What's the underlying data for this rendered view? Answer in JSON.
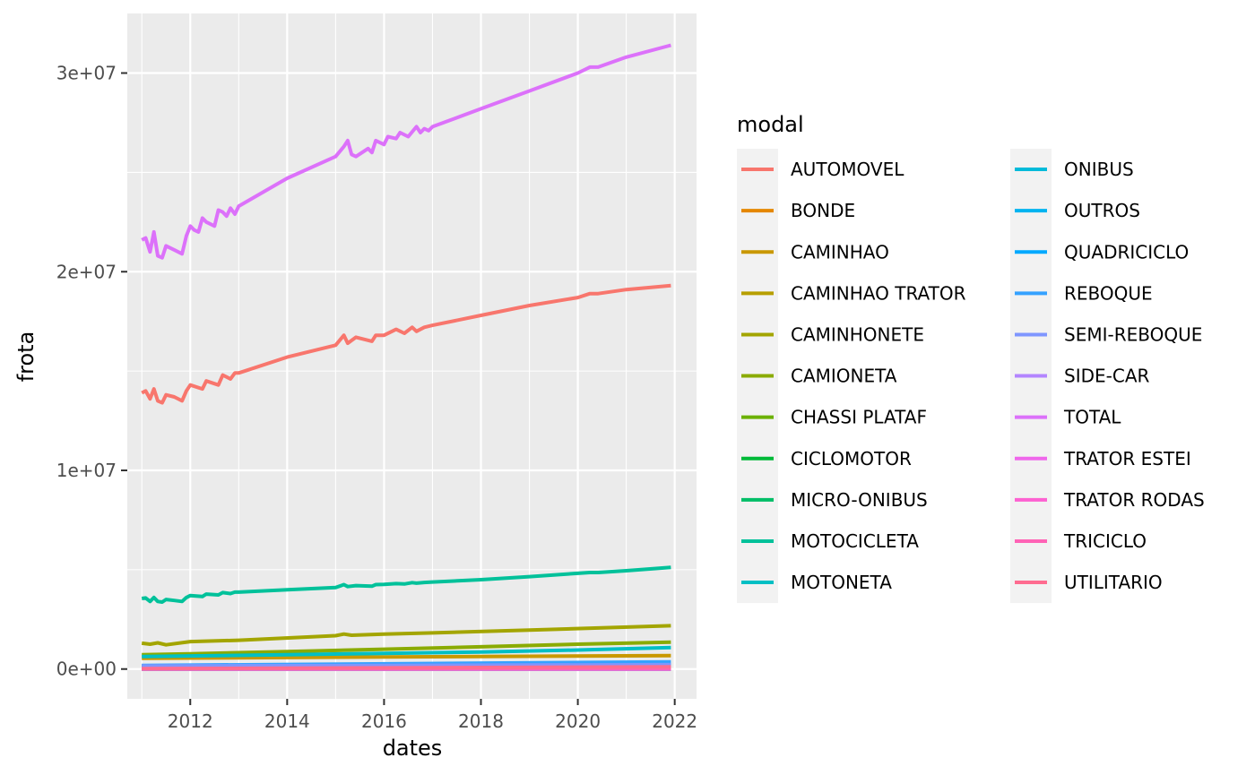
{
  "chart_data": {
    "type": "line",
    "xlabel": "dates",
    "ylabel": "frota",
    "xlim": [
      2010.7,
      2022.45
    ],
    "ylim": [
      -1500000,
      33000000
    ],
    "x_ticks": [
      2012,
      2014,
      2016,
      2018,
      2020,
      2022
    ],
    "x_tick_labels": [
      "2012",
      "2014",
      "2016",
      "2018",
      "2020",
      "2022"
    ],
    "y_ticks": [
      0,
      10000000,
      20000000,
      30000000
    ],
    "y_tick_labels": [
      "0e+00",
      "1e+07",
      "2e+07",
      "3e+07"
    ],
    "grid": true,
    "legend": {
      "title": "modal",
      "placement": "right",
      "columns": 2
    },
    "series": [
      {
        "name": "AUTOMOVEL",
        "color": "#F8766D",
        "x": [
          2011.0,
          2011.08,
          2011.17,
          2011.25,
          2011.33,
          2011.42,
          2011.5,
          2011.67,
          2011.83,
          2011.92,
          2012.0,
          2012.25,
          2012.33,
          2012.58,
          2012.67,
          2012.83,
          2012.92,
          2013.0,
          2014.0,
          2015.0,
          2015.17,
          2015.25,
          2015.42,
          2015.75,
          2015.83,
          2016.0,
          2016.25,
          2016.42,
          2016.58,
          2016.67,
          2016.83,
          2017.0,
          2018.0,
          2019.0,
          2020.0,
          2020.25,
          2020.42,
          2021.0,
          2021.92
        ],
        "y": [
          13900000,
          14000000,
          13600000,
          14100000,
          13500000,
          13400000,
          13800000,
          13700000,
          13500000,
          14000000,
          14300000,
          14100000,
          14500000,
          14300000,
          14800000,
          14600000,
          14900000,
          14900000,
          15700000,
          16300000,
          16800000,
          16400000,
          16700000,
          16500000,
          16800000,
          16800000,
          17100000,
          16900000,
          17200000,
          17000000,
          17200000,
          17300000,
          17800000,
          18300000,
          18700000,
          18900000,
          18900000,
          19100000,
          19300000
        ]
      },
      {
        "name": "BONDE",
        "color": "#E58700",
        "x": [
          2011.0,
          2021.92
        ],
        "y": [
          300,
          300
        ]
      },
      {
        "name": "CAMINHAO",
        "color": "#C99800",
        "x": [
          2011.0,
          2016.0,
          2021.92
        ],
        "y": [
          540000,
          610000,
          680000
        ]
      },
      {
        "name": "CAMINHAO TRATOR",
        "color": "#B79F00",
        "x": [
          2011.0,
          2016.0,
          2021.92
        ],
        "y": [
          160000,
          190000,
          220000
        ]
      },
      {
        "name": "CAMINHONETE",
        "color": "#A3A500",
        "x": [
          2011.0,
          2011.17,
          2011.33,
          2011.5,
          2012.0,
          2013.0,
          2015.0,
          2015.17,
          2015.33,
          2016.0,
          2017.0,
          2019.0,
          2021.92
        ],
        "y": [
          1300000,
          1250000,
          1320000,
          1220000,
          1380000,
          1450000,
          1680000,
          1760000,
          1700000,
          1760000,
          1820000,
          1960000,
          2180000
        ]
      },
      {
        "name": "CAMIONETA",
        "color": "#8AAB00",
        "x": [
          2011.0,
          2012.0,
          2014.0,
          2016.0,
          2018.0,
          2020.0,
          2021.92
        ],
        "y": [
          720000,
          770000,
          880000,
          1000000,
          1120000,
          1250000,
          1350000
        ]
      },
      {
        "name": "CHASSI PLATAF",
        "color": "#6BB100",
        "x": [
          2011.0,
          2021.92
        ],
        "y": [
          3000,
          3000
        ]
      },
      {
        "name": "CICLOMOTOR",
        "color": "#00BA38",
        "x": [
          2011.0,
          2021.92
        ],
        "y": [
          30000,
          50000
        ]
      },
      {
        "name": "MICRO-ONIBUS",
        "color": "#00BE67",
        "x": [
          2011.0,
          2021.92
        ],
        "y": [
          90000,
          120000
        ]
      },
      {
        "name": "MOTOCICLETA",
        "color": "#00C19A",
        "x": [
          2011.0,
          2011.08,
          2011.17,
          2011.25,
          2011.33,
          2011.42,
          2011.5,
          2011.67,
          2011.83,
          2011.92,
          2012.0,
          2012.25,
          2012.33,
          2012.58,
          2012.67,
          2012.83,
          2012.92,
          2013.0,
          2014.0,
          2015.0,
          2015.17,
          2015.25,
          2015.42,
          2015.75,
          2015.83,
          2016.0,
          2016.25,
          2016.42,
          2016.58,
          2016.67,
          2016.83,
          2017.0,
          2018.0,
          2019.0,
          2020.0,
          2020.25,
          2020.42,
          2021.0,
          2021.92
        ],
        "y": [
          3550000,
          3580000,
          3400000,
          3600000,
          3400000,
          3370000,
          3500000,
          3450000,
          3400000,
          3600000,
          3700000,
          3650000,
          3770000,
          3730000,
          3850000,
          3800000,
          3870000,
          3870000,
          3990000,
          4100000,
          4250000,
          4150000,
          4200000,
          4170000,
          4250000,
          4260000,
          4300000,
          4280000,
          4350000,
          4320000,
          4360000,
          4380000,
          4500000,
          4650000,
          4820000,
          4860000,
          4860000,
          4950000,
          5120000
        ]
      },
      {
        "name": "MOTONETA",
        "color": "#00BFC4",
        "x": [
          2011.0,
          2012.0,
          2014.0,
          2016.0,
          2018.0,
          2020.0,
          2021.92
        ],
        "y": [
          630000,
          660000,
          720000,
          790000,
          860000,
          960000,
          1080000
        ]
      },
      {
        "name": "ONIBUS",
        "color": "#00BBDA",
        "x": [
          2011.0,
          2021.92
        ],
        "y": [
          160000,
          200000
        ]
      },
      {
        "name": "OUTROS",
        "color": "#00B4F0",
        "x": [
          2011.0,
          2021.92
        ],
        "y": [
          10000,
          10000
        ]
      },
      {
        "name": "QUADRICICLO",
        "color": "#00A9FF",
        "x": [
          2011.0,
          2021.92
        ],
        "y": [
          200,
          500
        ]
      },
      {
        "name": "REBOQUE",
        "color": "#35A2FF",
        "x": [
          2011.0,
          2021.92
        ],
        "y": [
          180000,
          360000
        ]
      },
      {
        "name": "SEMI-REBOQUE",
        "color": "#7F96FF",
        "x": [
          2011.0,
          2021.92
        ],
        "y": [
          150000,
          220000
        ]
      },
      {
        "name": "SIDE-CAR",
        "color": "#B385FF",
        "x": [
          2011.0,
          2021.92
        ],
        "y": [
          2000,
          3000
        ]
      },
      {
        "name": "TOTAL",
        "color": "#DC71FA",
        "x": [
          2011.0,
          2011.08,
          2011.17,
          2011.25,
          2011.33,
          2011.42,
          2011.5,
          2011.67,
          2011.83,
          2011.92,
          2012.0,
          2012.08,
          2012.17,
          2012.25,
          2012.33,
          2012.5,
          2012.58,
          2012.67,
          2012.75,
          2012.83,
          2012.92,
          2013.0,
          2014.0,
          2015.0,
          2015.17,
          2015.25,
          2015.33,
          2015.42,
          2015.67,
          2015.75,
          2015.83,
          2016.0,
          2016.08,
          2016.25,
          2016.33,
          2016.5,
          2016.67,
          2016.75,
          2016.83,
          2016.92,
          2017.0,
          2018.0,
          2019.0,
          2020.0,
          2020.25,
          2020.42,
          2021.0,
          2021.92
        ],
        "y": [
          21600000,
          21700000,
          21000000,
          22000000,
          20800000,
          20700000,
          21300000,
          21100000,
          20900000,
          21800000,
          22300000,
          22100000,
          22000000,
          22700000,
          22500000,
          22300000,
          23100000,
          23000000,
          22800000,
          23200000,
          22900000,
          23300000,
          24700000,
          25800000,
          26300000,
          26600000,
          25900000,
          25800000,
          26200000,
          26000000,
          26600000,
          26400000,
          26800000,
          26700000,
          27000000,
          26800000,
          27300000,
          27000000,
          27200000,
          27100000,
          27300000,
          28200000,
          29100000,
          30000000,
          30300000,
          30300000,
          30800000,
          31400000
        ]
      },
      {
        "name": "TRATOR ESTEI",
        "color": "#EF67EB",
        "x": [
          2011.0,
          2021.92
        ],
        "y": [
          500,
          700
        ]
      },
      {
        "name": "TRATOR RODAS",
        "color": "#FD61D1",
        "x": [
          2011.0,
          2021.92
        ],
        "y": [
          10000,
          20000
        ]
      },
      {
        "name": "TRICICLO",
        "color": "#FF63B6",
        "x": [
          2011.0,
          2021.92
        ],
        "y": [
          10000,
          30000
        ]
      },
      {
        "name": "UTILITARIO",
        "color": "#FF6C90",
        "x": [
          2011.0,
          2021.92
        ],
        "y": [
          20000,
          110000
        ]
      }
    ]
  }
}
